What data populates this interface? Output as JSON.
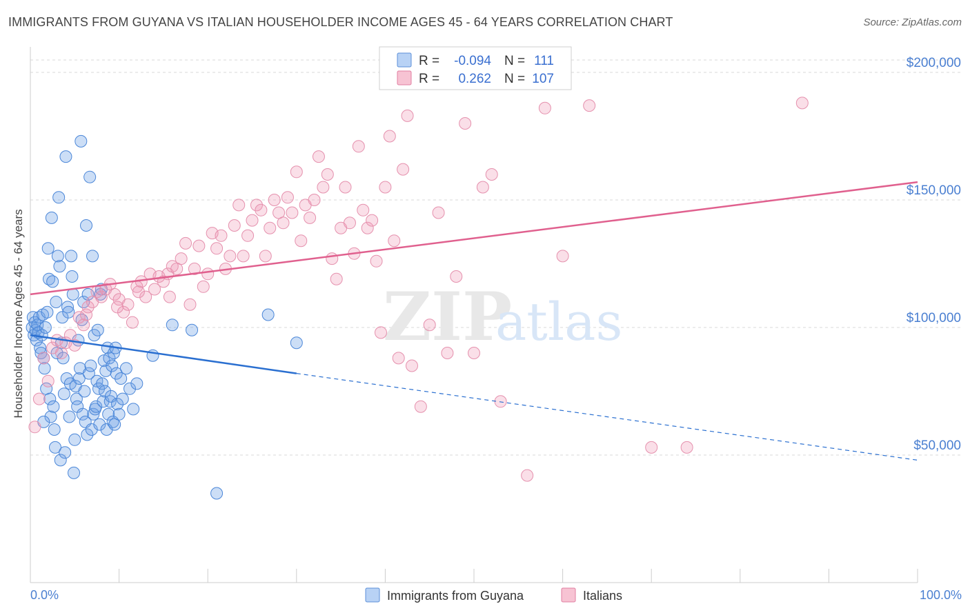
{
  "header": {
    "title": "IMMIGRANTS FROM GUYANA VS ITALIAN HOUSEHOLDER INCOME AGES 45 - 64 YEARS CORRELATION CHART",
    "source": "Source: ZipAtlas.com"
  },
  "watermark": {
    "zip": "ZIP",
    "atlas": "atlas"
  },
  "legend": {
    "r_label": "R =",
    "n_label": "N =",
    "rows": [
      {
        "r": "-0.094",
        "n": "111",
        "fill": "#b8d2f5",
        "stroke": "#5b8fd8"
      },
      {
        "r": "0.262",
        "n": "107",
        "fill": "#f7c3d3",
        "stroke": "#e07ca0"
      }
    ]
  },
  "colors": {
    "blue_fill": "rgba(110,160,230,0.35)",
    "blue_stroke": "#4a86d8",
    "blue_line": "#2a6fd0",
    "pink_fill": "rgba(240,150,180,0.30)",
    "pink_stroke": "#e590ad",
    "pink_line": "#e0608e",
    "grid": "#d8d8d8",
    "axis_text": "#4a7fd1"
  },
  "chart_data": {
    "type": "scatter",
    "title": "IMMIGRANTS FROM GUYANA VS ITALIAN HOUSEHOLDER INCOME AGES 45 - 64 YEARS CORRELATION CHART",
    "xlabel": "",
    "ylabel": "Householder Income Ages 45 - 64 years",
    "xlim": [
      0,
      100
    ],
    "ylim": [
      0,
      210000
    ],
    "x_tick_labels": [
      "0.0%",
      "100.0%"
    ],
    "y_ticks": [
      50000,
      100000,
      150000,
      200000
    ],
    "y_tick_labels": [
      "$50,000",
      "$100,000",
      "$150,000",
      "$200,000"
    ],
    "grid": true,
    "series": [
      {
        "name": "Immigrants from Guyana",
        "color": "#6ea0e6",
        "trend": {
          "x": [
            0,
            30
          ],
          "y": [
            97000,
            82000
          ],
          "dashed_to": [
            100,
            48000
          ]
        },
        "points": [
          [
            0.2,
            100000
          ],
          [
            0.3,
            104000
          ],
          [
            0.4,
            97000
          ],
          [
            0.5,
            102000
          ],
          [
            0.6,
            99000
          ],
          [
            0.7,
            95000
          ],
          [
            0.8,
            101000
          ],
          [
            0.9,
            98000
          ],
          [
            1.0,
            104000
          ],
          [
            1.1,
            92000
          ],
          [
            1.2,
            90000
          ],
          [
            1.3,
            97000
          ],
          [
            1.4,
            105000
          ],
          [
            1.5,
            88000
          ],
          [
            1.6,
            84000
          ],
          [
            1.7,
            100000
          ],
          [
            1.8,
            76000
          ],
          [
            1.9,
            106000
          ],
          [
            2.0,
            131000
          ],
          [
            2.1,
            119000
          ],
          [
            2.2,
            72000
          ],
          [
            2.3,
            65000
          ],
          [
            2.4,
            143000
          ],
          [
            2.5,
            118000
          ],
          [
            2.6,
            69000
          ],
          [
            2.7,
            60000
          ],
          [
            2.8,
            53000
          ],
          [
            2.9,
            110000
          ],
          [
            3.0,
            90000
          ],
          [
            3.1,
            128000
          ],
          [
            3.2,
            151000
          ],
          [
            3.3,
            124000
          ],
          [
            3.4,
            48000
          ],
          [
            3.5,
            94000
          ],
          [
            3.6,
            104000
          ],
          [
            3.7,
            88000
          ],
          [
            3.8,
            74000
          ],
          [
            3.9,
            51000
          ],
          [
            4.0,
            167000
          ],
          [
            4.1,
            80000
          ],
          [
            4.2,
            108000
          ],
          [
            4.3,
            106000
          ],
          [
            4.4,
            65000
          ],
          [
            4.5,
            78000
          ],
          [
            4.6,
            128000
          ],
          [
            4.7,
            120000
          ],
          [
            4.8,
            113000
          ],
          [
            4.9,
            43000
          ],
          [
            5.0,
            56000
          ],
          [
            5.1,
            77000
          ],
          [
            5.2,
            72000
          ],
          [
            5.3,
            69000
          ],
          [
            5.4,
            95000
          ],
          [
            5.5,
            80000
          ],
          [
            5.6,
            84000
          ],
          [
            5.7,
            173000
          ],
          [
            5.8,
            103000
          ],
          [
            5.9,
            66000
          ],
          [
            6.0,
            110000
          ],
          [
            6.1,
            75000
          ],
          [
            6.2,
            63000
          ],
          [
            6.3,
            140000
          ],
          [
            6.4,
            58000
          ],
          [
            6.5,
            113000
          ],
          [
            6.6,
            82000
          ],
          [
            6.7,
            159000
          ],
          [
            6.8,
            85000
          ],
          [
            6.9,
            60000
          ],
          [
            7.0,
            128000
          ],
          [
            7.1,
            66000
          ],
          [
            7.2,
            97000
          ],
          [
            7.3,
            68000
          ],
          [
            7.4,
            69000
          ],
          [
            7.5,
            79000
          ],
          [
            7.6,
            99000
          ],
          [
            7.7,
            76000
          ],
          [
            7.8,
            62000
          ],
          [
            7.9,
            113000
          ],
          [
            8.0,
            115000
          ],
          [
            8.1,
            78000
          ],
          [
            8.2,
            71000
          ],
          [
            8.3,
            87000
          ],
          [
            8.4,
            75000
          ],
          [
            8.5,
            83000
          ],
          [
            8.6,
            60000
          ],
          [
            8.7,
            92000
          ],
          [
            8.8,
            66000
          ],
          [
            8.9,
            88000
          ],
          [
            9.0,
            71000
          ],
          [
            9.1,
            73000
          ],
          [
            9.2,
            85000
          ],
          [
            9.3,
            63000
          ],
          [
            9.4,
            90000
          ],
          [
            9.5,
            62000
          ],
          [
            9.6,
            92000
          ],
          [
            9.7,
            82000
          ],
          [
            9.8,
            70000
          ],
          [
            10.0,
            66000
          ],
          [
            10.2,
            80000
          ],
          [
            10.4,
            72000
          ],
          [
            10.8,
            84000
          ],
          [
            11.2,
            76000
          ],
          [
            11.6,
            68000
          ],
          [
            12.0,
            78000
          ],
          [
            13.8,
            89000
          ],
          [
            16.0,
            101000
          ],
          [
            18.2,
            99000
          ],
          [
            21.0,
            35000
          ],
          [
            26.8,
            105000
          ],
          [
            30.0,
            94000
          ],
          [
            1.5,
            63000
          ]
        ]
      },
      {
        "name": "Italians",
        "color": "#f096b4",
        "trend": {
          "x": [
            0,
            100
          ],
          "y": [
            113000,
            157000
          ]
        },
        "points": [
          [
            0.5,
            61000
          ],
          [
            1.0,
            72000
          ],
          [
            1.5,
            88000
          ],
          [
            2.0,
            79000
          ],
          [
            2.5,
            92000
          ],
          [
            3.0,
            95000
          ],
          [
            3.5,
            90000
          ],
          [
            4.0,
            94000
          ],
          [
            4.5,
            97000
          ],
          [
            5.0,
            93000
          ],
          [
            5.5,
            104000
          ],
          [
            6.0,
            101000
          ],
          [
            6.5,
            108000
          ],
          [
            7.0,
            110000
          ],
          [
            7.5,
            114000
          ],
          [
            8.0,
            112000
          ],
          [
            8.5,
            115000
          ],
          [
            9.0,
            117000
          ],
          [
            9.5,
            113000
          ],
          [
            10.0,
            111000
          ],
          [
            10.5,
            106000
          ],
          [
            11.0,
            109000
          ],
          [
            11.5,
            102000
          ],
          [
            12.0,
            116000
          ],
          [
            12.5,
            118000
          ],
          [
            13.0,
            112000
          ],
          [
            13.5,
            121000
          ],
          [
            14.0,
            115000
          ],
          [
            14.5,
            120000
          ],
          [
            15.0,
            118000
          ],
          [
            15.5,
            121000
          ],
          [
            16.0,
            124000
          ],
          [
            16.5,
            123000
          ],
          [
            17.0,
            127000
          ],
          [
            17.5,
            133000
          ],
          [
            18.0,
            109000
          ],
          [
            18.5,
            123000
          ],
          [
            19.0,
            132000
          ],
          [
            19.5,
            116000
          ],
          [
            20.0,
            121000
          ],
          [
            20.5,
            137000
          ],
          [
            21.0,
            131000
          ],
          [
            21.5,
            136000
          ],
          [
            22.0,
            123000
          ],
          [
            22.5,
            128000
          ],
          [
            23.0,
            140000
          ],
          [
            23.5,
            148000
          ],
          [
            24.0,
            128000
          ],
          [
            24.5,
            136000
          ],
          [
            25.0,
            142000
          ],
          [
            25.5,
            148000
          ],
          [
            26.0,
            146000
          ],
          [
            26.5,
            128000
          ],
          [
            27.0,
            139000
          ],
          [
            27.5,
            150000
          ],
          [
            28.0,
            145000
          ],
          [
            28.5,
            141000
          ],
          [
            29.0,
            151000
          ],
          [
            29.5,
            145000
          ],
          [
            30.0,
            161000
          ],
          [
            30.5,
            134000
          ],
          [
            31.0,
            148000
          ],
          [
            31.5,
            143000
          ],
          [
            32.0,
            150000
          ],
          [
            32.5,
            167000
          ],
          [
            33.0,
            155000
          ],
          [
            33.5,
            160000
          ],
          [
            34.0,
            127000
          ],
          [
            34.5,
            119000
          ],
          [
            35.0,
            139000
          ],
          [
            35.5,
            155000
          ],
          [
            36.0,
            141000
          ],
          [
            36.5,
            129000
          ],
          [
            37.0,
            171000
          ],
          [
            37.5,
            146000
          ],
          [
            38.0,
            139000
          ],
          [
            38.5,
            142000
          ],
          [
            39.0,
            126000
          ],
          [
            39.5,
            98000
          ],
          [
            40.0,
            155000
          ],
          [
            40.5,
            175000
          ],
          [
            41.0,
            134000
          ],
          [
            41.5,
            88000
          ],
          [
            42.0,
            162000
          ],
          [
            42.5,
            183000
          ],
          [
            43.0,
            85000
          ],
          [
            44.0,
            69000
          ],
          [
            45.0,
            101000
          ],
          [
            46.0,
            145000
          ],
          [
            47.0,
            90000
          ],
          [
            48.0,
            120000
          ],
          [
            49.0,
            180000
          ],
          [
            50.0,
            90000
          ],
          [
            51.0,
            155000
          ],
          [
            52.0,
            160000
          ],
          [
            53.0,
            71000
          ],
          [
            56.0,
            42000
          ],
          [
            58.0,
            186000
          ],
          [
            60.0,
            128000
          ],
          [
            63.0,
            187000
          ],
          [
            70.0,
            53000
          ],
          [
            74.0,
            53000
          ],
          [
            87.0,
            188000
          ],
          [
            12.2,
            114000
          ],
          [
            9.8,
            108000
          ],
          [
            6.3,
            105000
          ],
          [
            15.7,
            112000
          ]
        ]
      }
    ]
  },
  "bottom_legend": {
    "items": [
      {
        "label": "Immigrants from Guyana"
      },
      {
        "label": "Italians"
      }
    ]
  }
}
